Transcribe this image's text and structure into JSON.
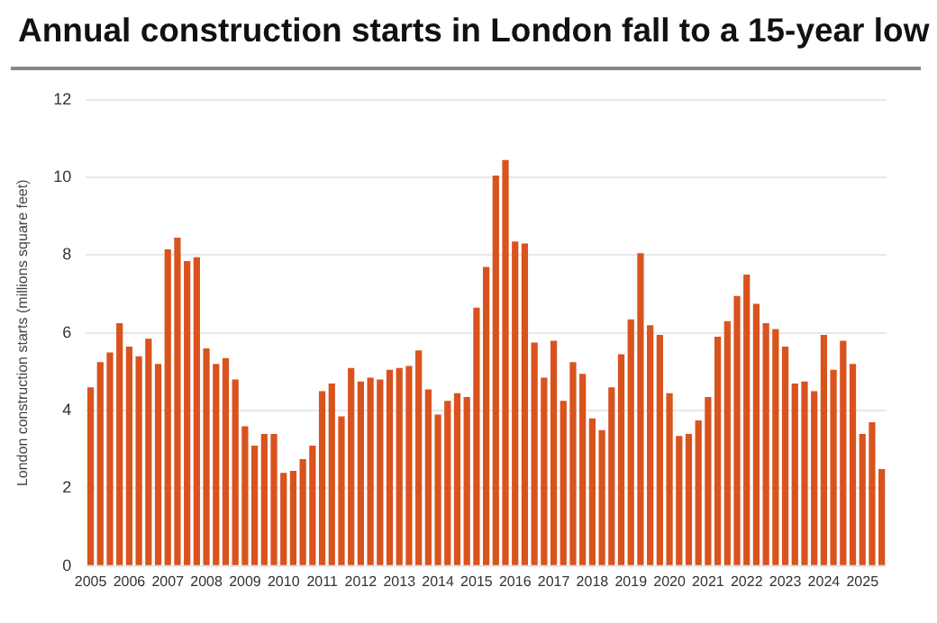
{
  "chart_data": {
    "type": "bar",
    "title": "Annual construction starts in London fall to a 15-year low",
    "ylabel": "London construction starts (millions square feet)",
    "categories": [
      "2005",
      null,
      null,
      null,
      "2006",
      null,
      null,
      null,
      "2007",
      null,
      null,
      null,
      "2008",
      null,
      null,
      null,
      "2009",
      null,
      null,
      null,
      "2010",
      null,
      null,
      null,
      "2011",
      null,
      null,
      null,
      "2012",
      null,
      null,
      null,
      "2013",
      null,
      null,
      null,
      "2014",
      null,
      null,
      null,
      "2015",
      null,
      null,
      null,
      "2016",
      null,
      null,
      null,
      "2017",
      null,
      null,
      null,
      "2018",
      null,
      null,
      null,
      "2019",
      null,
      null,
      null,
      "2020",
      null,
      null,
      null,
      "2021",
      null,
      null,
      null,
      "2022",
      null,
      null,
      null,
      "2023",
      null,
      null,
      null,
      "2024",
      null,
      null,
      null,
      "2025",
      null,
      null
    ],
    "values": [
      4.6,
      5.25,
      5.5,
      6.25,
      5.65,
      5.4,
      5.85,
      5.2,
      8.15,
      8.45,
      7.85,
      7.95,
      5.6,
      5.2,
      5.35,
      4.8,
      3.6,
      3.1,
      3.4,
      3.4,
      2.4,
      2.45,
      2.75,
      3.1,
      4.5,
      4.7,
      3.85,
      5.1,
      4.75,
      4.85,
      4.8,
      5.05,
      5.1,
      5.15,
      5.55,
      4.55,
      3.9,
      4.25,
      4.45,
      4.35,
      6.65,
      7.7,
      10.05,
      10.45,
      8.35,
      8.3,
      5.75,
      4.85,
      5.8,
      4.25,
      5.25,
      4.95,
      3.8,
      3.5,
      4.6,
      5.45,
      6.35,
      8.05,
      6.2,
      5.95,
      4.45,
      3.35,
      3.4,
      3.75,
      4.35,
      5.9,
      6.3,
      6.95,
      7.5,
      6.75,
      6.25,
      6.1,
      5.65,
      4.7,
      4.75,
      4.5,
      5.95,
      5.05,
      5.8,
      5.2,
      3.4,
      3.7,
      2.5
    ],
    "color": "#d9531e",
    "ylim": [
      0,
      12
    ],
    "yticks": [
      0,
      2,
      4,
      6,
      8,
      10,
      12
    ],
    "grid": "y"
  }
}
